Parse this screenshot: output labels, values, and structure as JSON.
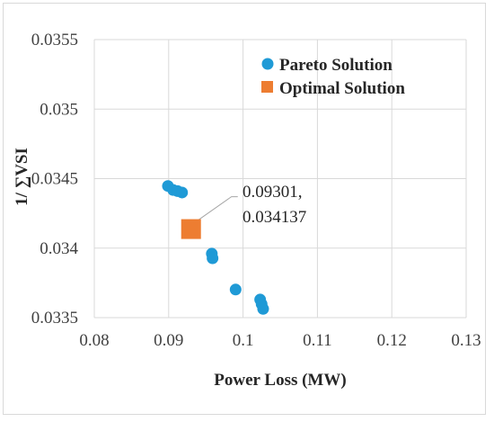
{
  "chart_data": {
    "type": "scatter",
    "title": "",
    "xlabel": "Power Loss (MW)",
    "ylabel": "1/ ∑VSI",
    "xlim": [
      0.08,
      0.13
    ],
    "ylim": [
      0.0335,
      0.0355
    ],
    "x_ticks": [
      0.08,
      0.09,
      0.1,
      0.11,
      0.12,
      0.13
    ],
    "x_tick_labels": [
      "0.08",
      "0.09",
      "0.1",
      "0.11",
      "0.12",
      "0.13"
    ],
    "y_ticks": [
      0.0335,
      0.034,
      0.0345,
      0.035,
      0.0355
    ],
    "y_tick_labels": [
      "0.0335",
      "0.034",
      "0.0345",
      "0.035",
      "0.0355"
    ],
    "grid": true,
    "legend_position": "top-right",
    "series": [
      {
        "name": "Pareto Solution",
        "marker": "circle",
        "color": "#1f9ad6",
        "points": [
          {
            "x": 0.0899,
            "y": 0.034447
          },
          {
            "x": 0.0906,
            "y": 0.034418
          },
          {
            "x": 0.0912,
            "y": 0.03441
          },
          {
            "x": 0.0918,
            "y": 0.0344
          },
          {
            "x": 0.0958,
            "y": 0.03396
          },
          {
            "x": 0.0959,
            "y": 0.033927
          },
          {
            "x": 0.099,
            "y": 0.033702
          },
          {
            "x": 0.1023,
            "y": 0.03363
          },
          {
            "x": 0.1025,
            "y": 0.033597
          },
          {
            "x": 0.1027,
            "y": 0.033563
          }
        ]
      },
      {
        "name": "Optimal Solution",
        "marker": "square",
        "color": "#ed7d31",
        "points": [
          {
            "x": 0.09301,
            "y": 0.034137
          }
        ]
      }
    ],
    "annotations": [
      {
        "text": "0.09301,\n0.034137",
        "lines": [
          "0.09301,",
          "0.034137"
        ],
        "x": 0.09301,
        "y": 0.034137
      }
    ]
  },
  "styles": {
    "gridline_color": "#d9d9d9",
    "tick_text_color": "#404040",
    "title_text_color": "#262626",
    "leader_line_color": "#a6a6a6"
  }
}
